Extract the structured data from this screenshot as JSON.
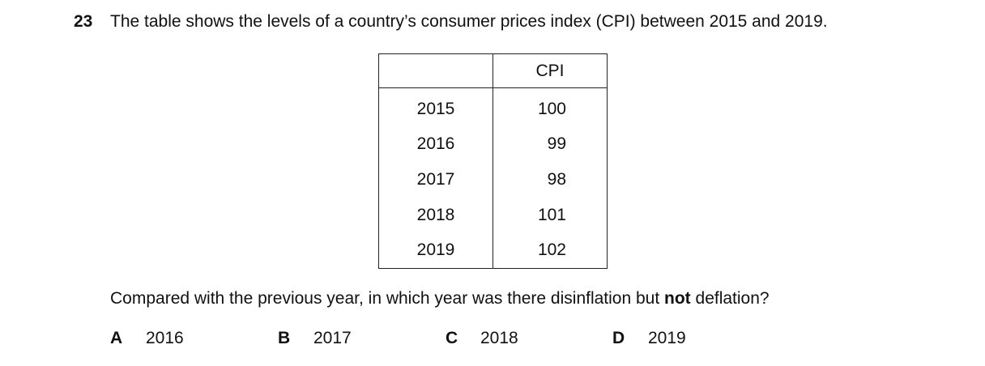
{
  "question": {
    "number": "23",
    "stem": "The table shows the levels of a country’s consumer prices index (CPI) between 2015 and 2019.",
    "prompt_before": "Compared with the previous year, in which year was there disinflation but ",
    "prompt_bold": "not",
    "prompt_after": " deflation?"
  },
  "table": {
    "header_year": "",
    "header_cpi": "CPI",
    "rows": [
      {
        "year": "2015",
        "cpi": "100"
      },
      {
        "year": "2016",
        "cpi": "99"
      },
      {
        "year": "2017",
        "cpi": "98"
      },
      {
        "year": "2018",
        "cpi": "101"
      },
      {
        "year": "2019",
        "cpi": "102"
      }
    ]
  },
  "options": [
    {
      "letter": "A",
      "text": "2016"
    },
    {
      "letter": "B",
      "text": "2017"
    },
    {
      "letter": "C",
      "text": "2018"
    },
    {
      "letter": "D",
      "text": "2019"
    }
  ]
}
